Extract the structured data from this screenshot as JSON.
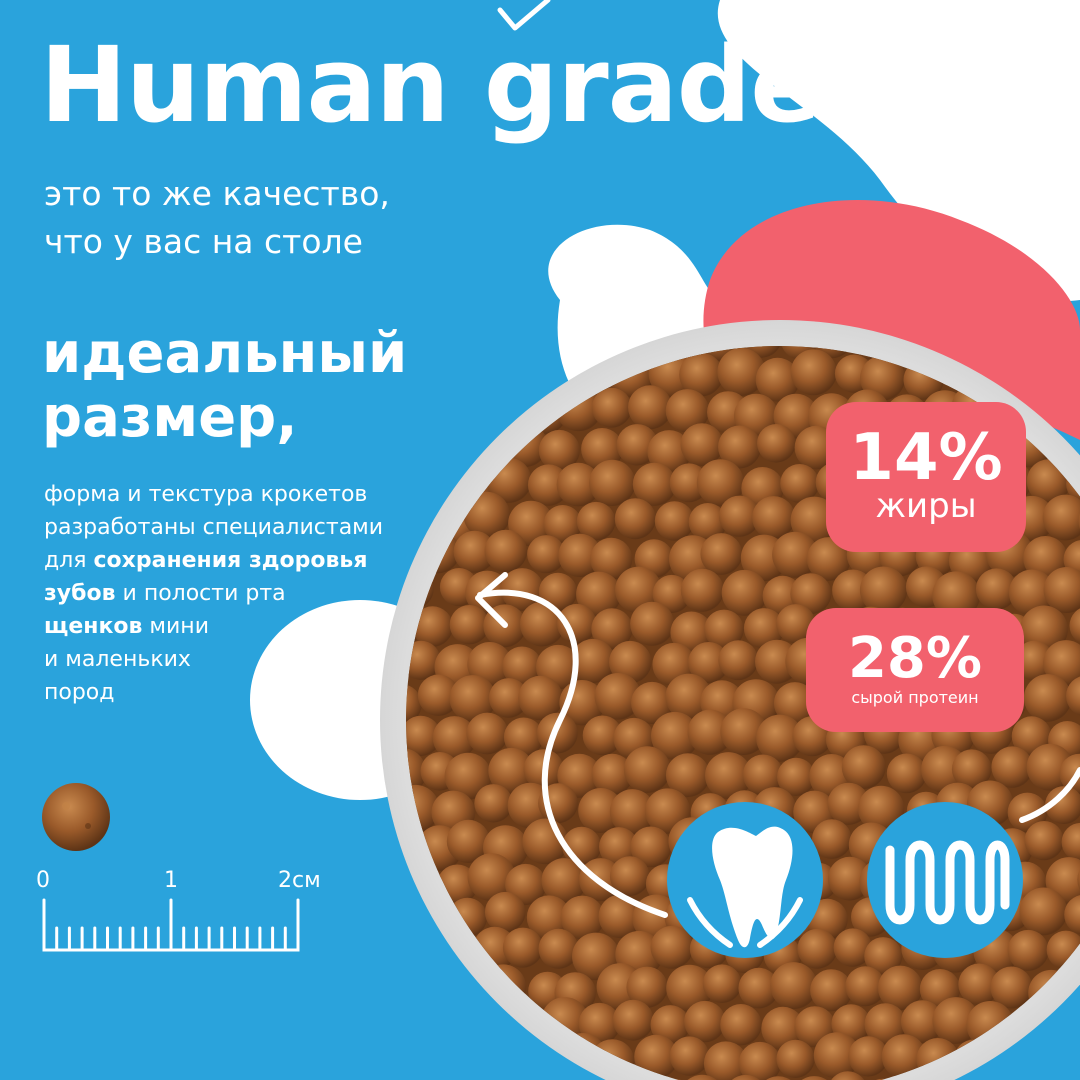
{
  "headline": "Human grade –",
  "subtitle": {
    "line1": "это то же качество,",
    "line2": "что у вас на столе"
  },
  "feature": {
    "line1": "идеальный",
    "line2": "размер,"
  },
  "description": {
    "l1": "форма и текстура крокетов",
    "l2": "разработаны специалистами",
    "l3_pre": "для ",
    "l3_bold": "сохранения здоровья",
    "l4_bold": "зубов",
    "l4_post": " и полости рта",
    "l5_bold": "щенков",
    "l5_post": " мини",
    "l6": "и маленьких",
    "l7": "пород"
  },
  "badges": {
    "fat": {
      "value": "14%",
      "label": "жиры"
    },
    "protein": {
      "value": "28%",
      "label": "сырой протеин"
    }
  },
  "ruler": {
    "label_0": "0",
    "label_1": "1",
    "label_2": "2см"
  },
  "icons": {
    "tooth": "tooth-icon",
    "texture": "wave-texture-icon"
  },
  "colors": {
    "background": "#2aa3dc",
    "accent": "#f2616d",
    "white": "#ffffff",
    "kibble": "#9a5a2a"
  }
}
